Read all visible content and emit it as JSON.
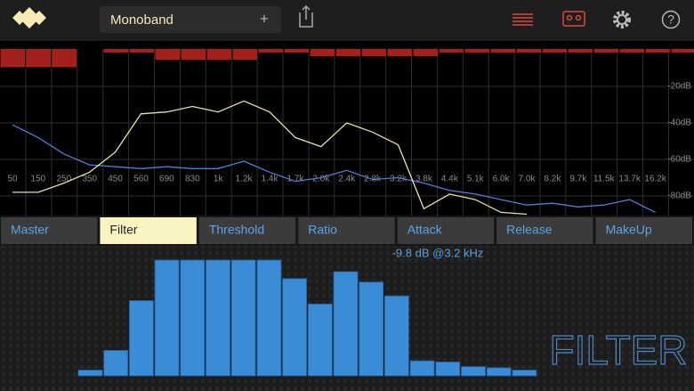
{
  "header": {
    "preset": "Monoband",
    "add_icon": "+",
    "help_icon": "?"
  },
  "spectrum": {
    "frequencies": [
      "50",
      "150",
      "250",
      "350",
      "450",
      "560",
      "690",
      "830",
      "1k",
      "1.2k",
      "1.4k",
      "1.7k",
      "2.0k",
      "2.4k",
      "2.8k",
      "3.2k",
      "3.8k",
      "4.4k",
      "5.1k",
      "6.0k",
      "7.0k",
      "8.2k",
      "9.7k",
      "11.5k",
      "13.7k",
      "16.2k"
    ],
    "db_ticks": [
      {
        "value": -20,
        "label": "-20dB"
      },
      {
        "value": -40,
        "label": "-40dB"
      },
      {
        "value": -60,
        "label": "-60dB"
      },
      {
        "value": -80,
        "label": "-80dB"
      }
    ],
    "meter_levels": [
      10,
      10,
      10,
      0,
      2,
      2,
      6,
      6,
      6,
      6,
      2,
      2,
      4,
      4,
      4,
      4,
      4,
      2,
      2,
      2,
      2,
      2,
      2,
      2,
      2,
      2,
      2
    ],
    "yellow_curve": [
      -78,
      -78,
      -73,
      -67,
      -56,
      -35,
      -34,
      -31,
      -34,
      -28,
      -34,
      -48,
      -53,
      -40,
      -45,
      -52,
      -87,
      -79,
      -82,
      -89,
      -90,
      null,
      null,
      null,
      null,
      null
    ],
    "blue_curve": [
      -41,
      -48,
      -57,
      -63,
      -64,
      -65,
      -64,
      -65,
      -65,
      -61,
      -67,
      -72,
      -70,
      -66,
      -71,
      -70,
      -73,
      -77,
      -79,
      -82,
      -85,
      -84,
      -86,
      -85,
      -82,
      -89
    ]
  },
  "tabs": {
    "items": [
      "Master",
      "Filter",
      "Threshold",
      "Ratio",
      "Attack",
      "Release",
      "MakeUp"
    ],
    "selected": "Filter"
  },
  "panel": {
    "readout": "-9.8 dB @3.2 kHz",
    "title": "FILTER",
    "filter_levels": [
      5,
      22,
      65,
      100,
      100,
      100,
      100,
      100,
      84,
      62,
      90,
      81,
      69,
      13,
      12,
      8,
      7,
      5
    ]
  }
}
